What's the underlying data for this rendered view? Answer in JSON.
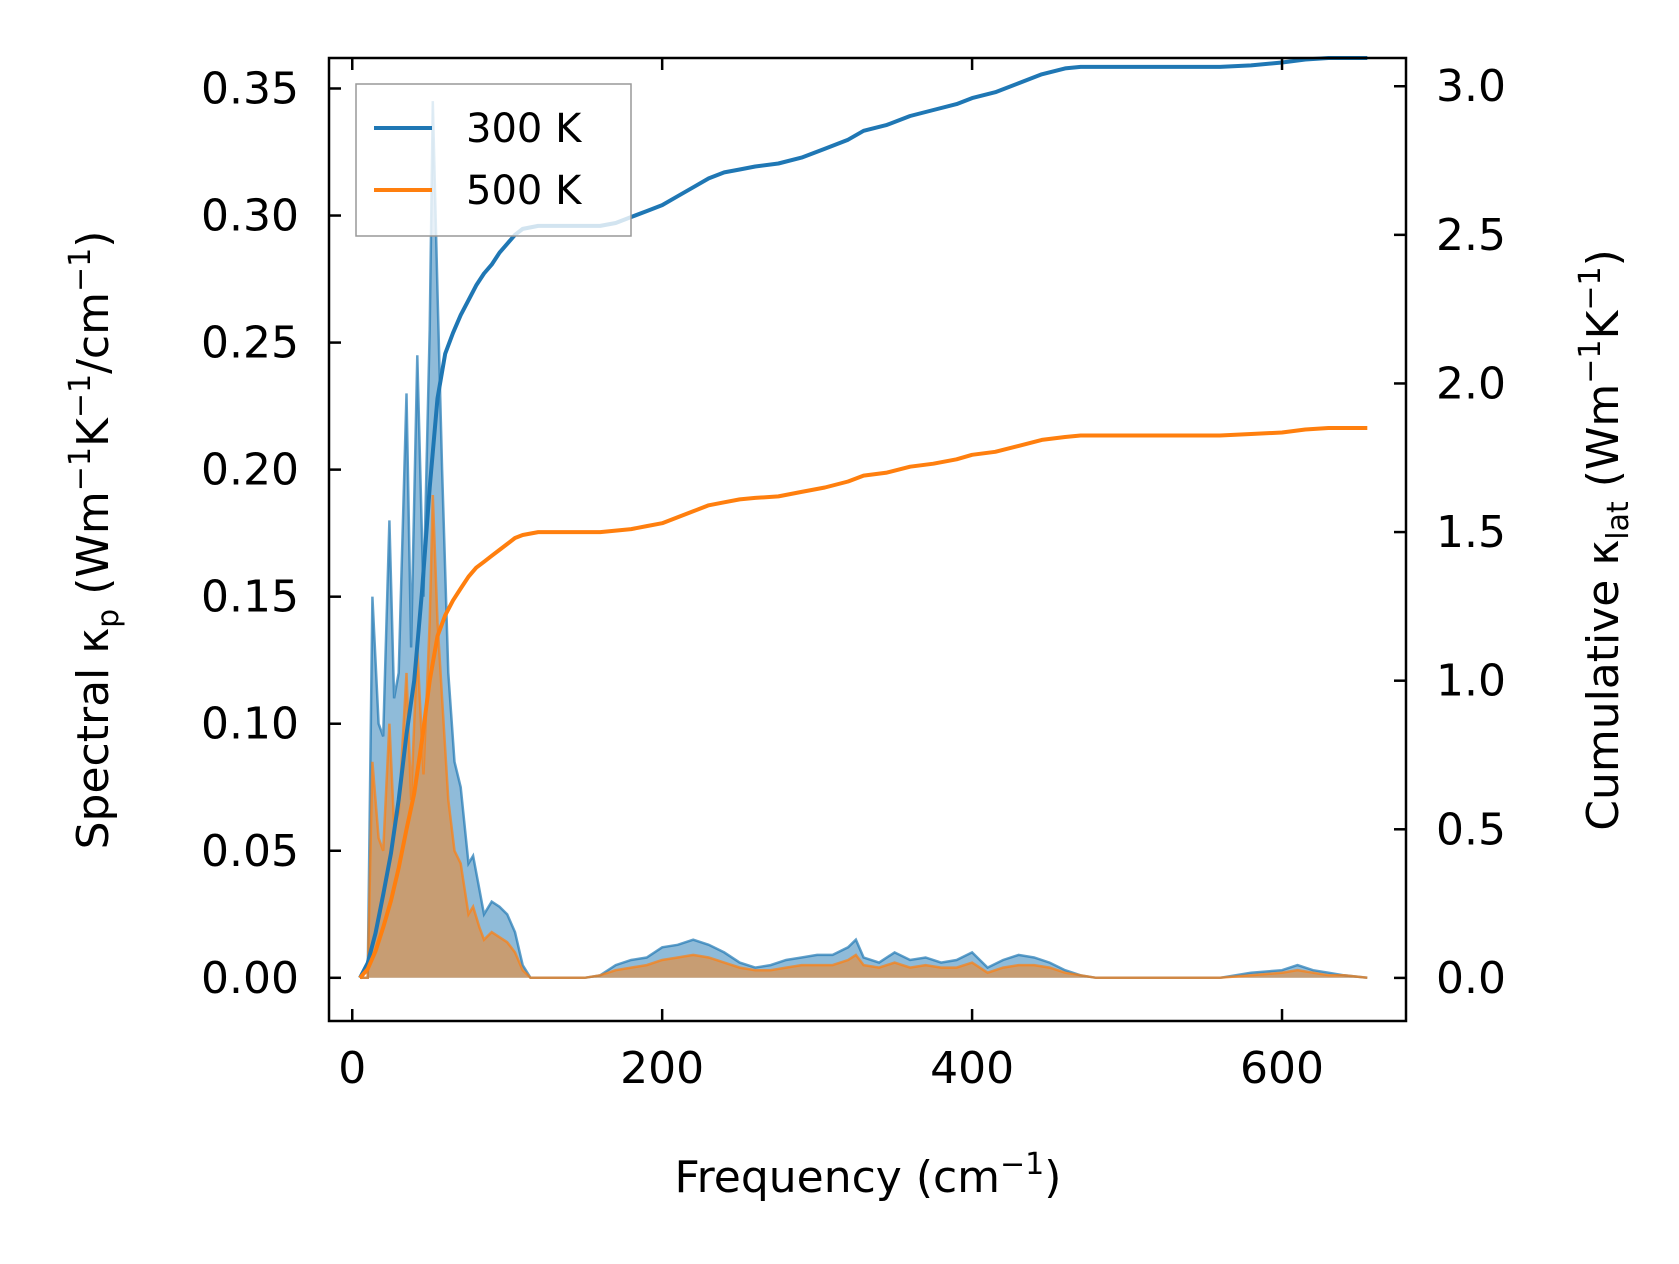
{
  "chart_data": {
    "type": "line",
    "xlabel_main": "Frequency (cm",
    "xlabel_sup": "−1",
    "xlabel_end": ")",
    "ylabel_left": {
      "t1": "Spectral κ",
      "sub": "p",
      "t2": " (Wm",
      "sup1": "−1",
      "t3": "K",
      "sup2": "−1",
      "t4": "/cm",
      "sup3": "−1",
      "t5": ")"
    },
    "ylabel_right": {
      "t1": "Cumulative κ",
      "sub": "lat",
      "t2": " (Wm",
      "sup1": "−1",
      "t3": "K",
      "sup2": "−1",
      "t4": ")"
    },
    "xlim": [
      -15,
      680
    ],
    "ylim_left": [
      -0.017,
      0.362
    ],
    "ylim_right": [
      -0.145,
      3.095
    ],
    "x_ticks": [
      0,
      200,
      400,
      600
    ],
    "x_tick_labels": [
      "0",
      "200",
      "400",
      "600"
    ],
    "y_left_ticks": [
      0,
      0.05,
      0.1,
      0.15,
      0.2,
      0.25,
      0.3,
      0.35
    ],
    "y_left_tick_labels": [
      "0.00",
      "0.05",
      "0.10",
      "0.15",
      "0.20",
      "0.25",
      "0.30",
      "0.35"
    ],
    "y_right_ticks": [
      0,
      0.5,
      1.0,
      1.5,
      2.0,
      2.5,
      3.0
    ],
    "y_right_tick_labels": [
      "0.0",
      "0.5",
      "1.0",
      "1.5",
      "2.0",
      "2.5",
      "3.0"
    ],
    "legend": {
      "placement": "top-left"
    },
    "colors": {
      "s300": "#1f77b4",
      "s500": "#ff7f0e",
      "overlap": "#c59a74"
    },
    "series": [
      {
        "name": "300 K",
        "cumulative": [
          [
            5,
            0
          ],
          [
            10,
            0.05
          ],
          [
            15,
            0.15
          ],
          [
            20,
            0.28
          ],
          [
            25,
            0.42
          ],
          [
            30,
            0.6
          ],
          [
            35,
            0.82
          ],
          [
            40,
            1.0
          ],
          [
            45,
            1.3
          ],
          [
            50,
            1.65
          ],
          [
            55,
            1.95
          ],
          [
            60,
            2.1
          ],
          [
            65,
            2.17
          ],
          [
            70,
            2.23
          ],
          [
            75,
            2.28
          ],
          [
            80,
            2.33
          ],
          [
            85,
            2.37
          ],
          [
            90,
            2.4
          ],
          [
            95,
            2.44
          ],
          [
            100,
            2.47
          ],
          [
            105,
            2.5
          ],
          [
            110,
            2.52
          ],
          [
            120,
            2.53
          ],
          [
            160,
            2.53
          ],
          [
            170,
            2.54
          ],
          [
            180,
            2.56
          ],
          [
            190,
            2.58
          ],
          [
            200,
            2.6
          ],
          [
            210,
            2.63
          ],
          [
            220,
            2.66
          ],
          [
            230,
            2.69
          ],
          [
            240,
            2.71
          ],
          [
            250,
            2.72
          ],
          [
            260,
            2.73
          ],
          [
            275,
            2.74
          ],
          [
            290,
            2.76
          ],
          [
            305,
            2.79
          ],
          [
            320,
            2.82
          ],
          [
            330,
            2.85
          ],
          [
            345,
            2.87
          ],
          [
            360,
            2.9
          ],
          [
            375,
            2.92
          ],
          [
            390,
            2.94
          ],
          [
            400,
            2.96
          ],
          [
            415,
            2.98
          ],
          [
            430,
            3.01
          ],
          [
            445,
            3.04
          ],
          [
            460,
            3.06
          ],
          [
            470,
            3.065
          ],
          [
            560,
            3.065
          ],
          [
            580,
            3.07
          ],
          [
            600,
            3.08
          ],
          [
            615,
            3.09
          ],
          [
            630,
            3.095
          ],
          [
            655,
            3.095
          ]
        ],
        "spectral": [
          [
            5,
            0
          ],
          [
            10,
            0.0
          ],
          [
            13,
            0.15
          ],
          [
            17,
            0.1
          ],
          [
            20,
            0.095
          ],
          [
            24,
            0.18
          ],
          [
            27,
            0.11
          ],
          [
            30,
            0.12
          ],
          [
            35,
            0.23
          ],
          [
            38,
            0.13
          ],
          [
            42,
            0.245
          ],
          [
            46,
            0.15
          ],
          [
            50,
            0.255
          ],
          [
            52,
            0.345
          ],
          [
            55,
            0.27
          ],
          [
            58,
            0.2
          ],
          [
            62,
            0.12
          ],
          [
            66,
            0.085
          ],
          [
            70,
            0.075
          ],
          [
            75,
            0.045
          ],
          [
            78,
            0.048
          ],
          [
            82,
            0.035
          ],
          [
            85,
            0.025
          ],
          [
            90,
            0.03
          ],
          [
            95,
            0.028
          ],
          [
            100,
            0.025
          ],
          [
            105,
            0.018
          ],
          [
            110,
            0.005
          ],
          [
            115,
            0.0
          ],
          [
            150,
            0.0
          ],
          [
            160,
            0.001
          ],
          [
            170,
            0.005
          ],
          [
            180,
            0.007
          ],
          [
            190,
            0.008
          ],
          [
            200,
            0.012
          ],
          [
            210,
            0.013
          ],
          [
            220,
            0.015
          ],
          [
            230,
            0.013
          ],
          [
            240,
            0.01
          ],
          [
            250,
            0.006
          ],
          [
            260,
            0.004
          ],
          [
            270,
            0.005
          ],
          [
            280,
            0.007
          ],
          [
            290,
            0.008
          ],
          [
            300,
            0.009
          ],
          [
            310,
            0.009
          ],
          [
            320,
            0.012
          ],
          [
            325,
            0.015
          ],
          [
            330,
            0.008
          ],
          [
            340,
            0.006
          ],
          [
            350,
            0.01
          ],
          [
            360,
            0.007
          ],
          [
            370,
            0.008
          ],
          [
            380,
            0.006
          ],
          [
            390,
            0.007
          ],
          [
            400,
            0.01
          ],
          [
            410,
            0.004
          ],
          [
            420,
            0.007
          ],
          [
            430,
            0.009
          ],
          [
            440,
            0.008
          ],
          [
            450,
            0.006
          ],
          [
            460,
            0.003
          ],
          [
            470,
            0.001
          ],
          [
            480,
            0.0
          ],
          [
            560,
            0.0
          ],
          [
            580,
            0.002
          ],
          [
            600,
            0.003
          ],
          [
            610,
            0.005
          ],
          [
            620,
            0.003
          ],
          [
            630,
            0.002
          ],
          [
            640,
            0.001
          ],
          [
            655,
            0.0
          ]
        ]
      },
      {
        "name": "500 K",
        "cumulative": [
          [
            5,
            0
          ],
          [
            10,
            0.03
          ],
          [
            15,
            0.09
          ],
          [
            20,
            0.17
          ],
          [
            25,
            0.26
          ],
          [
            30,
            0.37
          ],
          [
            35,
            0.5
          ],
          [
            40,
            0.62
          ],
          [
            45,
            0.8
          ],
          [
            50,
            1.0
          ],
          [
            55,
            1.15
          ],
          [
            60,
            1.22
          ],
          [
            65,
            1.27
          ],
          [
            70,
            1.31
          ],
          [
            75,
            1.35
          ],
          [
            80,
            1.38
          ],
          [
            85,
            1.4
          ],
          [
            90,
            1.42
          ],
          [
            95,
            1.44
          ],
          [
            100,
            1.46
          ],
          [
            105,
            1.48
          ],
          [
            110,
            1.49
          ],
          [
            120,
            1.5
          ],
          [
            160,
            1.5
          ],
          [
            170,
            1.505
          ],
          [
            180,
            1.51
          ],
          [
            190,
            1.52
          ],
          [
            200,
            1.53
          ],
          [
            210,
            1.55
          ],
          [
            220,
            1.57
          ],
          [
            230,
            1.59
          ],
          [
            240,
            1.6
          ],
          [
            250,
            1.61
          ],
          [
            260,
            1.615
          ],
          [
            275,
            1.62
          ],
          [
            290,
            1.635
          ],
          [
            305,
            1.65
          ],
          [
            320,
            1.67
          ],
          [
            330,
            1.69
          ],
          [
            345,
            1.7
          ],
          [
            360,
            1.72
          ],
          [
            375,
            1.73
          ],
          [
            390,
            1.745
          ],
          [
            400,
            1.76
          ],
          [
            415,
            1.77
          ],
          [
            430,
            1.79
          ],
          [
            445,
            1.81
          ],
          [
            460,
            1.82
          ],
          [
            470,
            1.825
          ],
          [
            560,
            1.825
          ],
          [
            580,
            1.83
          ],
          [
            600,
            1.835
          ],
          [
            615,
            1.845
          ],
          [
            630,
            1.85
          ],
          [
            655,
            1.85
          ]
        ],
        "spectral": [
          [
            5,
            0
          ],
          [
            10,
            0.0
          ],
          [
            13,
            0.085
          ],
          [
            17,
            0.055
          ],
          [
            20,
            0.05
          ],
          [
            24,
            0.1
          ],
          [
            27,
            0.06
          ],
          [
            30,
            0.065
          ],
          [
            35,
            0.12
          ],
          [
            38,
            0.07
          ],
          [
            42,
            0.13
          ],
          [
            46,
            0.08
          ],
          [
            50,
            0.14
          ],
          [
            52,
            0.19
          ],
          [
            55,
            0.14
          ],
          [
            58,
            0.11
          ],
          [
            62,
            0.07
          ],
          [
            66,
            0.05
          ],
          [
            70,
            0.045
          ],
          [
            75,
            0.025
          ],
          [
            78,
            0.028
          ],
          [
            82,
            0.02
          ],
          [
            85,
            0.015
          ],
          [
            90,
            0.018
          ],
          [
            95,
            0.016
          ],
          [
            100,
            0.014
          ],
          [
            105,
            0.01
          ],
          [
            110,
            0.003
          ],
          [
            115,
            0.0
          ],
          [
            150,
            0.0
          ],
          [
            160,
            0.001
          ],
          [
            170,
            0.003
          ],
          [
            180,
            0.004
          ],
          [
            190,
            0.005
          ],
          [
            200,
            0.007
          ],
          [
            210,
            0.008
          ],
          [
            220,
            0.009
          ],
          [
            230,
            0.008
          ],
          [
            240,
            0.006
          ],
          [
            250,
            0.004
          ],
          [
            260,
            0.003
          ],
          [
            270,
            0.003
          ],
          [
            280,
            0.004
          ],
          [
            290,
            0.005
          ],
          [
            300,
            0.005
          ],
          [
            310,
            0.005
          ],
          [
            320,
            0.007
          ],
          [
            325,
            0.009
          ],
          [
            330,
            0.005
          ],
          [
            340,
            0.004
          ],
          [
            350,
            0.006
          ],
          [
            360,
            0.004
          ],
          [
            370,
            0.005
          ],
          [
            380,
            0.004
          ],
          [
            390,
            0.004
          ],
          [
            400,
            0.006
          ],
          [
            410,
            0.002
          ],
          [
            420,
            0.004
          ],
          [
            430,
            0.005
          ],
          [
            440,
            0.005
          ],
          [
            450,
            0.004
          ],
          [
            460,
            0.002
          ],
          [
            470,
            0.001
          ],
          [
            480,
            0.0
          ],
          [
            560,
            0.0
          ],
          [
            580,
            0.001
          ],
          [
            600,
            0.002
          ],
          [
            610,
            0.003
          ],
          [
            620,
            0.002
          ],
          [
            630,
            0.001
          ],
          [
            640,
            0.001
          ],
          [
            655,
            0.0
          ]
        ]
      }
    ]
  }
}
